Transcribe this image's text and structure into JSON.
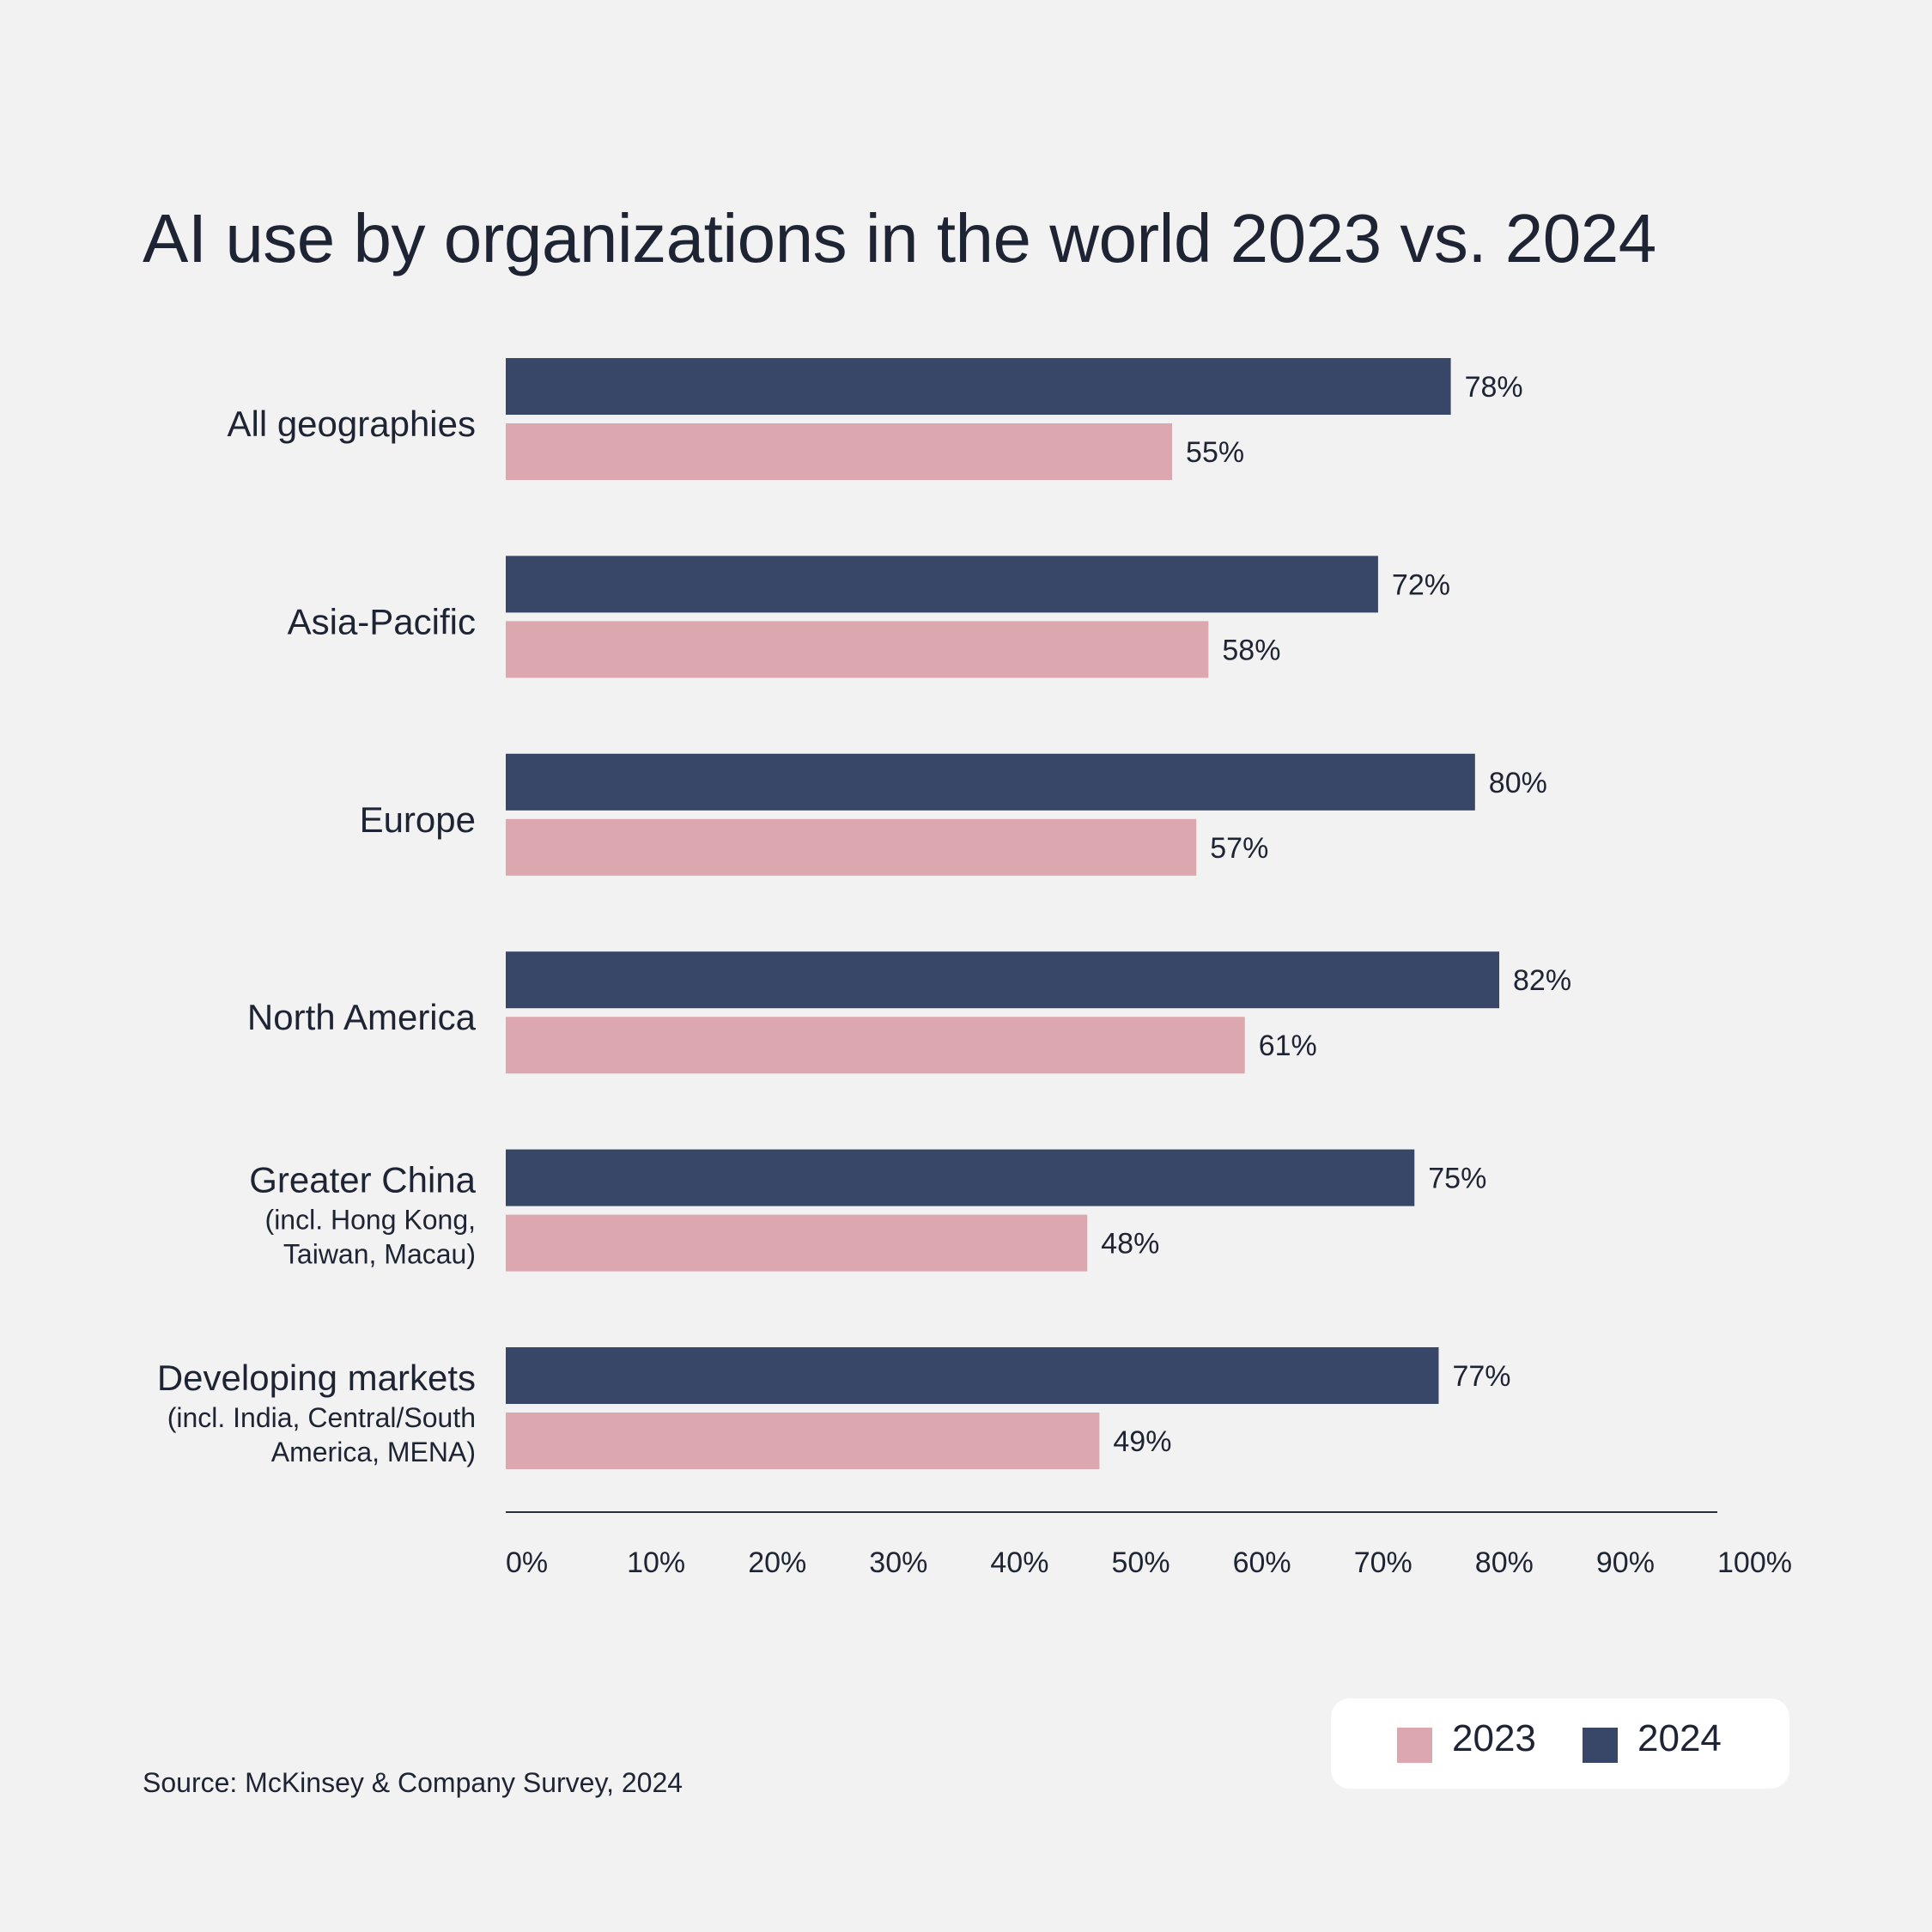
{
  "colors": {
    "series_2023": "#dca7af",
    "series_2024": "#384668",
    "text": "#1e2433",
    "axis": "#2b2f3a",
    "background": "#f2f2f2"
  },
  "chart_data": {
    "type": "bar",
    "orientation": "horizontal",
    "title": "AI use by organizations in the world 2023 vs. 2024",
    "categories": [
      {
        "name": "All geographies",
        "sublines": []
      },
      {
        "name": "Asia-Pacific",
        "sublines": []
      },
      {
        "name": "Europe",
        "sublines": []
      },
      {
        "name": "North America",
        "sublines": []
      },
      {
        "name": "Greater China",
        "sublines": [
          "(incl. Hong Kong,",
          "Taiwan, Macau)"
        ]
      },
      {
        "name": "Developing markets",
        "sublines": [
          "(incl. India, Central/South",
          "America, MENA)"
        ]
      }
    ],
    "series": [
      {
        "name": "2024",
        "values": [
          78,
          72,
          80,
          82,
          75,
          77
        ],
        "labels": [
          "78%",
          "72%",
          "80%",
          "82%",
          "75%",
          "77%"
        ]
      },
      {
        "name": "2023",
        "values": [
          55,
          58,
          57,
          61,
          48,
          49
        ],
        "labels": [
          "55%",
          "58%",
          "57%",
          "61%",
          "48%",
          "49%"
        ]
      }
    ],
    "xlim": [
      0,
      100
    ],
    "xticks": [
      "0%",
      "10%",
      "20%",
      "30%",
      "40%",
      "50%",
      "60%",
      "70%",
      "80%",
      "90%",
      "100%"
    ],
    "xlabel": "",
    "ylabel": "",
    "grid": false,
    "legend_position": "bottom-right"
  },
  "legend": {
    "item_2023": "2023",
    "item_2024": "2024"
  },
  "source": "Source: McKinsey & Company Survey, 2024"
}
